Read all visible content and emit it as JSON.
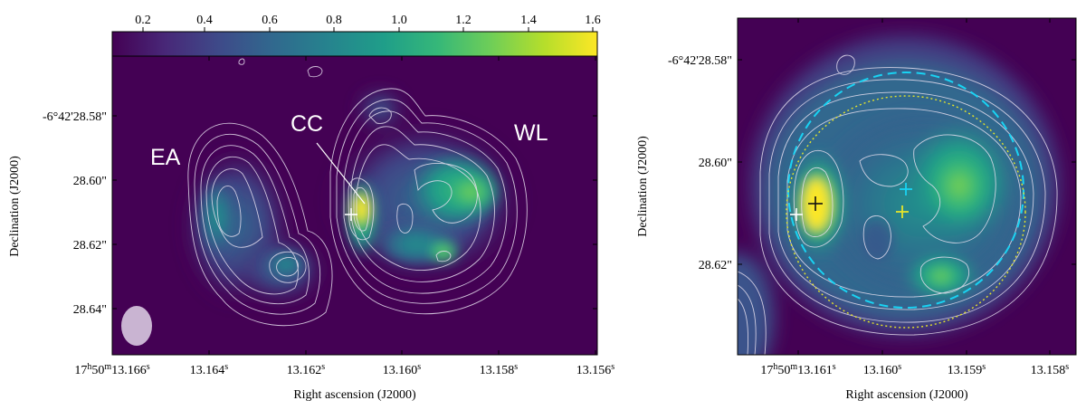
{
  "colorbar": {
    "ticks": [
      "0.2",
      "0.4",
      "0.6",
      "0.8",
      "1.0",
      "1.2",
      "1.4",
      "1.6"
    ],
    "colors": [
      "#440154",
      "#482878",
      "#3e4a89",
      "#31688e",
      "#26828e",
      "#1f9e89",
      "#35b779",
      "#6ece58",
      "#b5de2b",
      "#fde725"
    ]
  },
  "left_panel": {
    "xlabel": "Right ascension (J2000)",
    "ylabel": "Declination (J2000)",
    "x_ticks": [
      {
        "main": "17",
        "s1": "h",
        "mid": "50",
        "s2": "m",
        "tail": "13.166",
        "s3": "s"
      },
      {
        "main": "13.164",
        "s3": "s"
      },
      {
        "main": "13.162",
        "s3": "s"
      },
      {
        "main": "13.160",
        "s3": "s"
      },
      {
        "main": "13.158",
        "s3": "s"
      },
      {
        "main": "13.156",
        "s3": "s"
      }
    ],
    "y_ticks": [
      "-6°42'28.58\"",
      "28.60\"",
      "28.62\"",
      "28.64\""
    ],
    "labels": {
      "ea": "EA",
      "cc": "CC",
      "wl": "WL"
    }
  },
  "right_panel": {
    "xlabel": "Right ascension (J2000)",
    "ylabel": "Declination (J2000)",
    "x_ticks": [
      {
        "main": "17",
        "s1": "h",
        "mid": "50",
        "s2": "m",
        "tail": "13.161",
        "s3": "s"
      },
      {
        "main": "13.160",
        "s3": "s"
      },
      {
        "main": "13.159",
        "s3": "s"
      },
      {
        "main": "13.158",
        "s3": "s"
      }
    ],
    "y_ticks": [
      "-6°42'28.58\"",
      "28.60\"",
      "28.62\""
    ]
  }
}
